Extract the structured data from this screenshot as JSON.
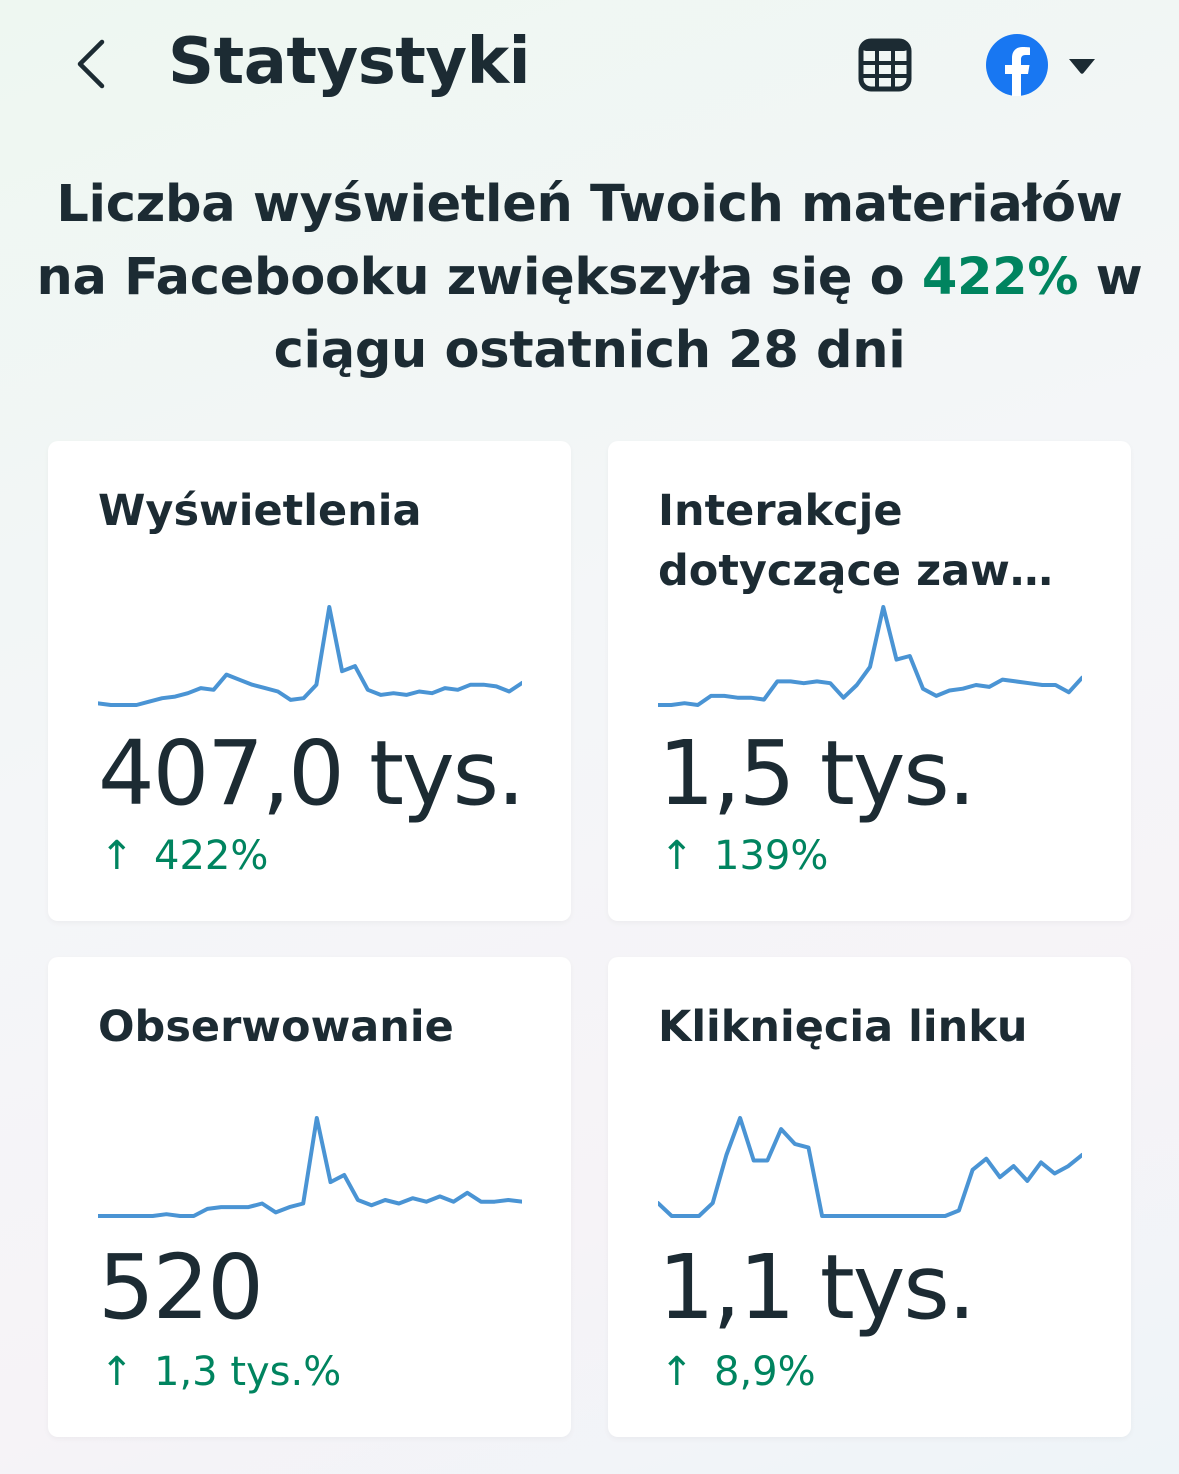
{
  "header": {
    "title": "Statystyki",
    "back_icon": "chevron-left-icon",
    "calendar_icon": "calendar-icon",
    "platform_icon": "facebook-icon",
    "dropdown_icon": "caret-down-icon"
  },
  "headline": {
    "before": "Liczba wyświetleń Twoich materiałów na Facebooku zwiększyła się o ",
    "percent": "422%",
    "after": " w ciągu ostatnich 28 dni"
  },
  "colors": {
    "positive": "#00845f",
    "sparkline": "#4a94d4",
    "text": "#1c2b33",
    "facebook": "#1877f2"
  },
  "cards": [
    {
      "title": "Wyświetlenia",
      "value": "407,0 tys.",
      "change": "422%",
      "trend": [
        3,
        2,
        2,
        2,
        4,
        6,
        7,
        9,
        12,
        11,
        20,
        17,
        14,
        12,
        10,
        5,
        6,
        14,
        60,
        22,
        25,
        11,
        8,
        9,
        8,
        10,
        9,
        12,
        11,
        14,
        14,
        13,
        10,
        15
      ]
    },
    {
      "title": "Interakcje dotyczące zaw…",
      "value": "1,5 tys.",
      "change": "139%",
      "trend": [
        3,
        3,
        4,
        3,
        8,
        8,
        7,
        7,
        6,
        16,
        16,
        15,
        16,
        15,
        7,
        14,
        24,
        57,
        28,
        30,
        12,
        8,
        11,
        12,
        14,
        13,
        17,
        16,
        15,
        14,
        14,
        10,
        18
      ]
    },
    {
      "title": "Obserwowanie",
      "value": "520",
      "change": "1,3 tys.%",
      "trend": [
        3,
        3,
        3,
        3,
        3,
        4,
        3,
        3,
        7,
        8,
        8,
        8,
        10,
        5,
        8,
        10,
        58,
        22,
        26,
        12,
        9,
        12,
        10,
        13,
        11,
        14,
        11,
        16,
        11,
        11,
        12,
        11
      ]
    },
    {
      "title": "Kliknięcia linku",
      "value": "1,1 tys.",
      "change": "8,9%",
      "trend": [
        10,
        3,
        3,
        3,
        10,
        36,
        56,
        33,
        33,
        50,
        42,
        40,
        3,
        3,
        3,
        3,
        3,
        3,
        3,
        3,
        3,
        3,
        6,
        28,
        34,
        24,
        30,
        22,
        32,
        26,
        30,
        36
      ]
    }
  ]
}
